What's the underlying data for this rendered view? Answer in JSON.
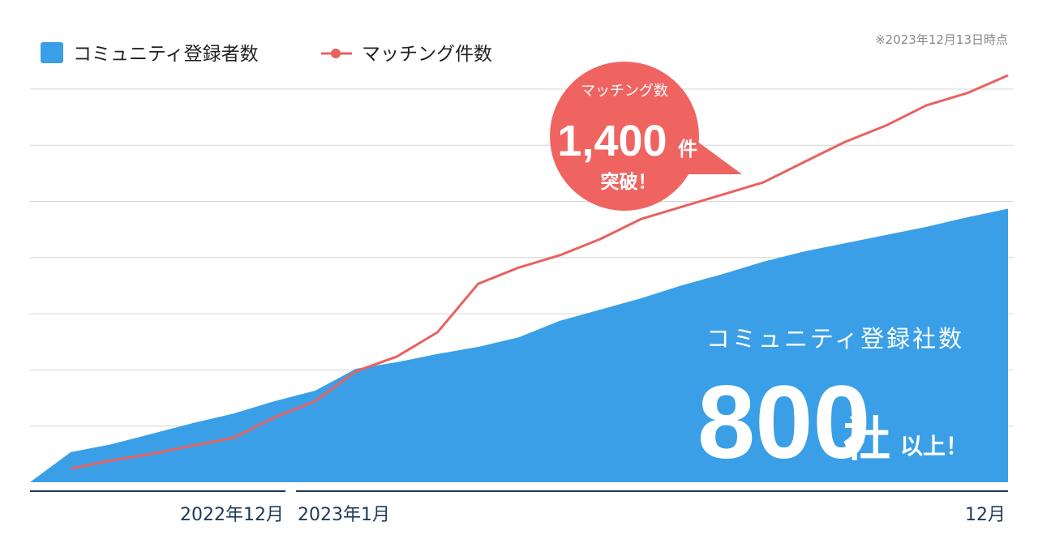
{
  "chart_data": {
    "type": "area-line",
    "legend": "top-left",
    "note": "※2023年12月13日時点",
    "x_axis_labels": [
      "2022年12月",
      "2023年1月",
      "12月"
    ],
    "ylim": [
      0,
      1190
    ],
    "y2lim": [
      0,
      1400
    ],
    "grid": true,
    "series": [
      {
        "name": "コミュニティ登録者数",
        "type": "area",
        "color": "#3a9fe6",
        "values": [
          0,
          88,
          111,
          142,
          173,
          201,
          237,
          268,
          332,
          351,
          375,
          396,
          424,
          472,
          505,
          538,
          576,
          609,
          645,
          675,
          699,
          723,
          747,
          775,
          800
        ]
      },
      {
        "name": "マッチング件数",
        "type": "line",
        "axis": "y2",
        "color": "#e8625f",
        "values": [
          null,
          47,
          75,
          98,
          126,
          153,
          223,
          279,
          382,
          432,
          516,
          683,
          739,
          781,
          837,
          906,
          948,
          990,
          1032,
          1102,
          1171,
          1227,
          1297,
          1339,
          1400
        ]
      }
    ],
    "callouts": [
      {
        "title": "マッチング数",
        "value_label": "1,400",
        "unit": "件",
        "suffix": "突破！"
      },
      {
        "title": "コミュニティ登録社数",
        "value_label": "800",
        "unit": "社",
        "suffix": "以上！"
      }
    ]
  }
}
